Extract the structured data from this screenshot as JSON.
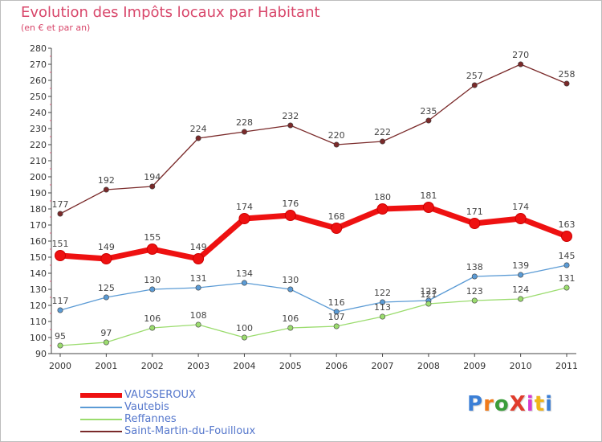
{
  "title": "Evolution des Impôts locaux par Habitant",
  "subtitle": "(en € et par an)",
  "logo": {
    "text": "ProXiti",
    "colors": [
      "#3b7fd6",
      "#f07a1a",
      "#3b9d3b",
      "#e03c2c",
      "#d63bd0",
      "#f0b419",
      "#3b7fd6"
    ]
  },
  "chart_data": {
    "type": "line",
    "x": [
      "2000",
      "2001",
      "2002",
      "2003",
      "2004",
      "2005",
      "2006",
      "2007",
      "2008",
      "2009",
      "2010",
      "2011"
    ],
    "ylim": [
      90,
      280
    ],
    "yticks": [
      90,
      100,
      110,
      120,
      130,
      140,
      150,
      160,
      170,
      180,
      190,
      200,
      210,
      220,
      230,
      240,
      250,
      260,
      270,
      280
    ],
    "grid": false,
    "legend_position": "bottom-left",
    "series": [
      {
        "name": "Saint-Martin-du-Fouilloux",
        "color": "#7a2a2a",
        "values": [
          177,
          192,
          194,
          224,
          228,
          232,
          220,
          222,
          235,
          257,
          270,
          258
        ]
      },
      {
        "name": "Vautebis",
        "color": "#5b9bd5",
        "values": [
          117,
          125,
          130,
          131,
          134,
          130,
          116,
          122,
          123,
          138,
          139,
          145
        ]
      },
      {
        "name": "Reffannes",
        "color": "#9bdc6e",
        "values": [
          95,
          97,
          106,
          108,
          100,
          106,
          107,
          113,
          121,
          123,
          124,
          131
        ]
      },
      {
        "name": "VAUSSEROUX",
        "color": "#ee1111",
        "values": [
          151,
          149,
          155,
          149,
          174,
          176,
          168,
          180,
          181,
          171,
          174,
          163
        ]
      }
    ],
    "legend_order": [
      "VAUSSEROUX",
      "Vautebis",
      "Reffannes",
      "Saint-Martin-du-Fouilloux"
    ]
  }
}
